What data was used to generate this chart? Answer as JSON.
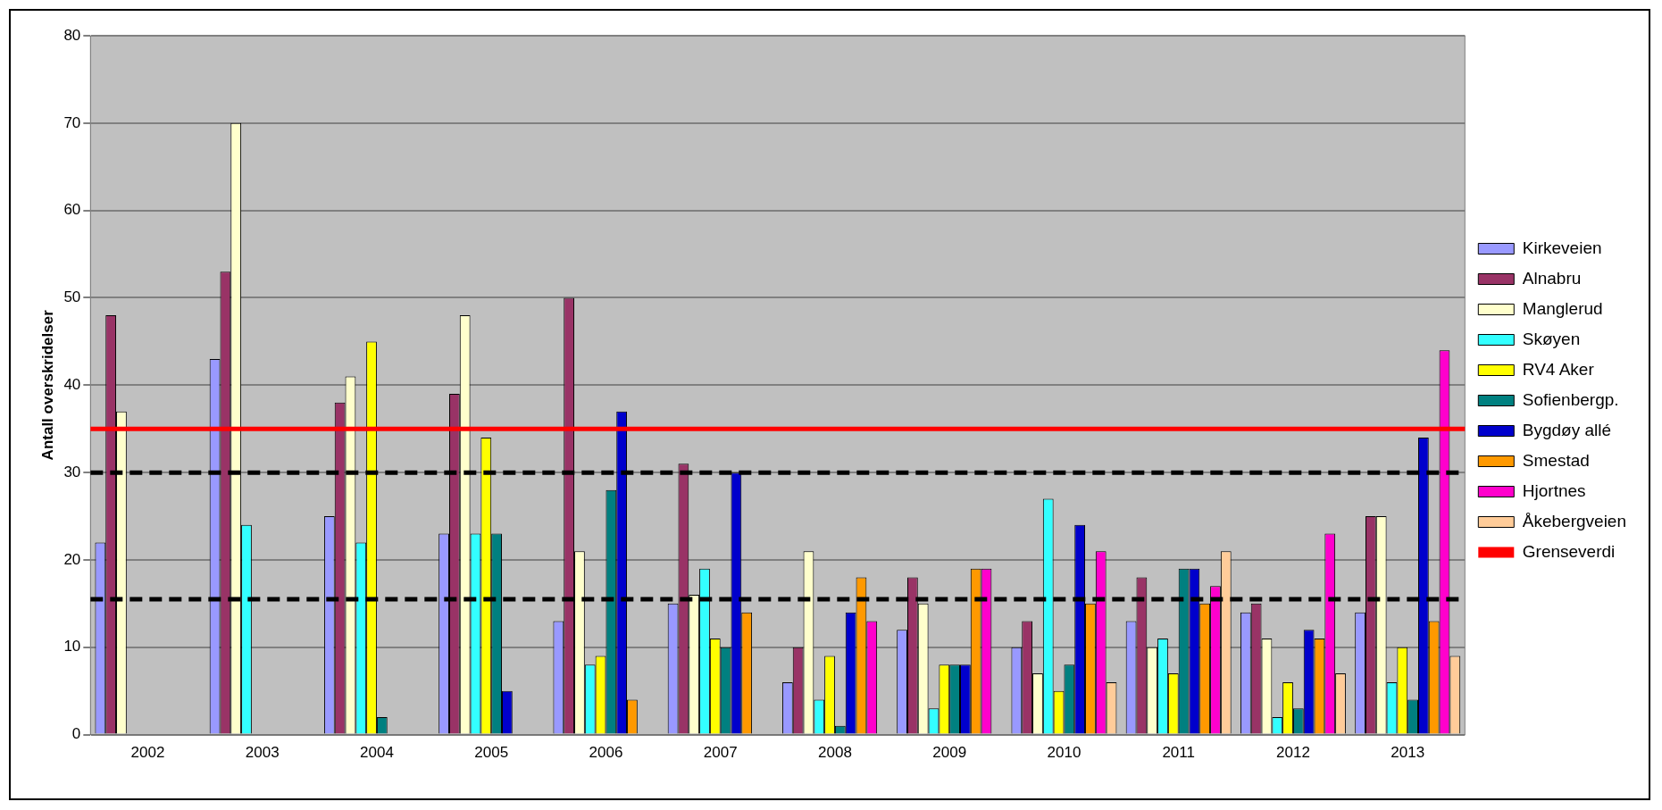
{
  "chart_data": {
    "type": "bar",
    "ylabel": "Antall overskridelser",
    "categories": [
      "2002",
      "2003",
      "2004",
      "2005",
      "2006",
      "2007",
      "2008",
      "2009",
      "2010",
      "2011",
      "2012",
      "2013"
    ],
    "ylim": [
      0,
      80
    ],
    "yticks": [
      0,
      10,
      20,
      30,
      40,
      50,
      60,
      70,
      80
    ],
    "grid": "y",
    "legend": "right",
    "series": [
      {
        "name": "Kirkeveien",
        "color": "#9999ff",
        "values": [
          22,
          43,
          25,
          23,
          13,
          15,
          6,
          12,
          10,
          13,
          14,
          14
        ]
      },
      {
        "name": "Alnabru",
        "color": "#993366",
        "values": [
          48,
          53,
          38,
          39,
          50,
          31,
          10,
          18,
          13,
          18,
          15,
          25
        ]
      },
      {
        "name": "Manglerud",
        "color": "#ffffcc",
        "values": [
          37,
          70,
          41,
          48,
          21,
          16,
          21,
          15,
          7,
          10,
          11,
          25
        ]
      },
      {
        "name": "Skøyen",
        "color": "#33ffff",
        "values": [
          null,
          24,
          22,
          23,
          8,
          19,
          4,
          3,
          27,
          11,
          2,
          6
        ]
      },
      {
        "name": "RV4 Aker",
        "color": "#ffff00",
        "values": [
          null,
          null,
          45,
          34,
          9,
          11,
          9,
          8,
          5,
          7,
          6,
          10
        ]
      },
      {
        "name": "Sofienbergp.",
        "color": "#008080",
        "values": [
          null,
          null,
          2,
          23,
          28,
          10,
          1,
          8,
          8,
          19,
          3,
          4
        ]
      },
      {
        "name": "Bygdøy allé",
        "color": "#0000cc",
        "values": [
          null,
          null,
          null,
          5,
          37,
          30,
          14,
          8,
          24,
          19,
          12,
          34
        ]
      },
      {
        "name": "Smestad",
        "color": "#ff9900",
        "values": [
          null,
          null,
          null,
          null,
          4,
          14,
          18,
          19,
          15,
          15,
          11,
          13
        ]
      },
      {
        "name": "Hjortnes",
        "color": "#ff00cc",
        "values": [
          null,
          null,
          null,
          null,
          null,
          null,
          13,
          19,
          21,
          17,
          23,
          44
        ]
      },
      {
        "name": "Åkebergveien",
        "color": "#ffcc99",
        "values": [
          null,
          null,
          null,
          null,
          null,
          null,
          null,
          null,
          6,
          21,
          7,
          9
        ]
      }
    ],
    "ref_lines": [
      {
        "axis": "y",
        "value": 35,
        "label": "Grenseverdi",
        "color": "#ff0000",
        "line_style": "solid"
      },
      {
        "axis": "y",
        "value": 30,
        "color": "#000000",
        "line_style": "dashed"
      },
      {
        "axis": "y",
        "value": 15.5,
        "color": "#000000",
        "line_style": "dashed"
      }
    ]
  }
}
